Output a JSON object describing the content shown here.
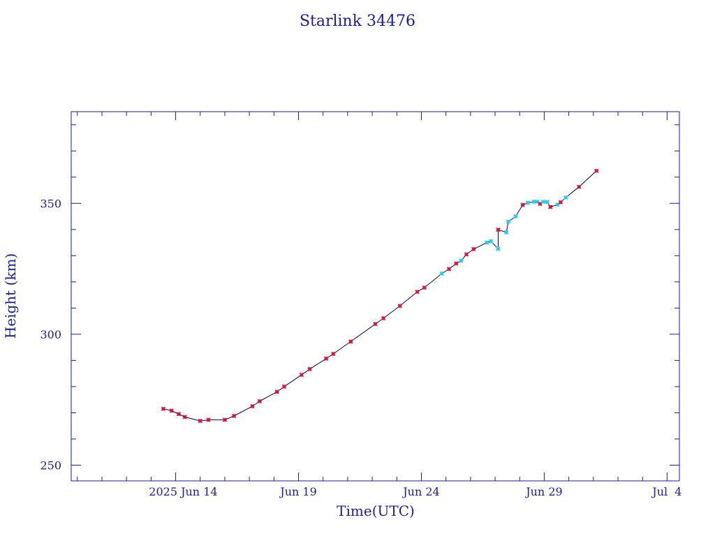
{
  "chart_data": {
    "type": "line",
    "title": "Starlink 34476",
    "xlabel": "Time(UTC)",
    "ylabel": "Height (km)",
    "ylim": [
      244,
      385
    ],
    "xlim": [
      "2025-06-09T18:00",
      "2025-07-04T12:00"
    ],
    "x_tick_labels": [
      {
        "date": "2025-06-14",
        "label": "2025 Jun 14"
      },
      {
        "date": "2025-06-19",
        "label": "Jun 19"
      },
      {
        "date": "2025-06-24",
        "label": "Jun 24"
      },
      {
        "date": "2025-06-29",
        "label": "Jun 29"
      },
      {
        "date": "2025-07-04",
        "label": "Jul  4"
      }
    ],
    "y_tick_labels": [
      250,
      300,
      350
    ],
    "grid": false,
    "colors": {
      "axis": "#1a1aa6",
      "line": "#000060",
      "marker_primary": "#dd1133",
      "marker_secondary": "#22ccee"
    },
    "series": [
      {
        "points": [
          {
            "x": "2025-06-13T12:00",
            "y": 271.5,
            "marker": "primary"
          },
          {
            "x": "2025-06-13T20:00",
            "y": 270.8,
            "marker": "primary"
          },
          {
            "x": "2025-06-14T03:00",
            "y": 269.5,
            "marker": "primary"
          },
          {
            "x": "2025-06-14T09:00",
            "y": 268.4,
            "marker": "primary"
          },
          {
            "x": "2025-06-15T00:00",
            "y": 266.9,
            "marker": "primary"
          },
          {
            "x": "2025-06-15T08:00",
            "y": 267.3,
            "marker": "primary"
          },
          {
            "x": "2025-06-16T00:00",
            "y": 267.3,
            "marker": "primary"
          },
          {
            "x": "2025-06-16T09:00",
            "y": 268.8,
            "marker": "primary"
          },
          {
            "x": "2025-06-17T03:00",
            "y": 272.5,
            "marker": "primary"
          },
          {
            "x": "2025-06-17T10:00",
            "y": 274.4,
            "marker": "primary"
          },
          {
            "x": "2025-06-18T03:00",
            "y": 278.0,
            "marker": "primary"
          },
          {
            "x": "2025-06-18T10:00",
            "y": 280.0,
            "marker": "primary"
          },
          {
            "x": "2025-06-19T03:00",
            "y": 284.5,
            "marker": "primary"
          },
          {
            "x": "2025-06-19T11:00",
            "y": 286.7,
            "marker": "primary"
          },
          {
            "x": "2025-06-20T03:00",
            "y": 290.7,
            "marker": "primary"
          },
          {
            "x": "2025-06-20T10:00",
            "y": 292.5,
            "marker": "primary"
          },
          {
            "x": "2025-06-21T03:00",
            "y": 297.2,
            "marker": "primary"
          },
          {
            "x": "2025-06-22T03:00",
            "y": 303.9,
            "marker": "primary"
          },
          {
            "x": "2025-06-22T11:00",
            "y": 306.1,
            "marker": "primary"
          },
          {
            "x": "2025-06-23T03:00",
            "y": 310.8,
            "marker": "primary"
          },
          {
            "x": "2025-06-23T20:00",
            "y": 316.2,
            "marker": "primary"
          },
          {
            "x": "2025-06-24T03:00",
            "y": 317.8,
            "marker": "primary"
          },
          {
            "x": "2025-06-24T20:00",
            "y": 323.2,
            "marker": "secondary"
          },
          {
            "x": "2025-06-25T03:00",
            "y": 324.9,
            "marker": "primary"
          },
          {
            "x": "2025-06-25T10:00",
            "y": 327.0,
            "marker": "primary"
          },
          {
            "x": "2025-06-25T15:00",
            "y": 328.1,
            "marker": "secondary"
          },
          {
            "x": "2025-06-25T20:00",
            "y": 330.5,
            "marker": "primary"
          },
          {
            "x": "2025-06-26T03:00",
            "y": 332.5,
            "marker": "primary"
          },
          {
            "x": "2025-06-26T16:00",
            "y": 335.0,
            "marker": "secondary"
          },
          {
            "x": "2025-06-26T20:00",
            "y": 335.5,
            "marker": "secondary"
          },
          {
            "x": "2025-06-27T03:00",
            "y": 332.6,
            "marker": "secondary"
          },
          {
            "x": "2025-06-27T03:00",
            "y": 339.9,
            "marker": "primary"
          },
          {
            "x": "2025-06-27T11:00",
            "y": 338.9,
            "marker": "secondary"
          },
          {
            "x": "2025-06-27T13:00",
            "y": 343.0,
            "marker": "secondary"
          },
          {
            "x": "2025-06-27T20:00",
            "y": 345.0,
            "marker": "secondary"
          },
          {
            "x": "2025-06-28T03:00",
            "y": 349.4,
            "marker": "primary"
          },
          {
            "x": "2025-06-28T08:00",
            "y": 350.2,
            "marker": "secondary"
          },
          {
            "x": "2025-06-28T14:00",
            "y": 350.6,
            "marker": "secondary"
          },
          {
            "x": "2025-06-28T17:00",
            "y": 350.6,
            "marker": "secondary"
          },
          {
            "x": "2025-06-28T20:00",
            "y": 349.8,
            "marker": "primary"
          },
          {
            "x": "2025-06-28T23:00",
            "y": 350.6,
            "marker": "secondary"
          },
          {
            "x": "2025-06-29T03:00",
            "y": 350.5,
            "marker": "secondary"
          },
          {
            "x": "2025-06-29T06:00",
            "y": 348.6,
            "marker": "primary"
          },
          {
            "x": "2025-06-29T13:00",
            "y": 349.5,
            "marker": "secondary"
          },
          {
            "x": "2025-06-29T16:00",
            "y": 350.4,
            "marker": "primary"
          },
          {
            "x": "2025-06-29T21:00",
            "y": 352.2,
            "marker": "secondary"
          },
          {
            "x": "2025-06-30T10:00",
            "y": 356.3,
            "marker": "primary"
          },
          {
            "x": "2025-07-01T03:00",
            "y": 362.4,
            "marker": "primary"
          }
        ]
      }
    ]
  }
}
